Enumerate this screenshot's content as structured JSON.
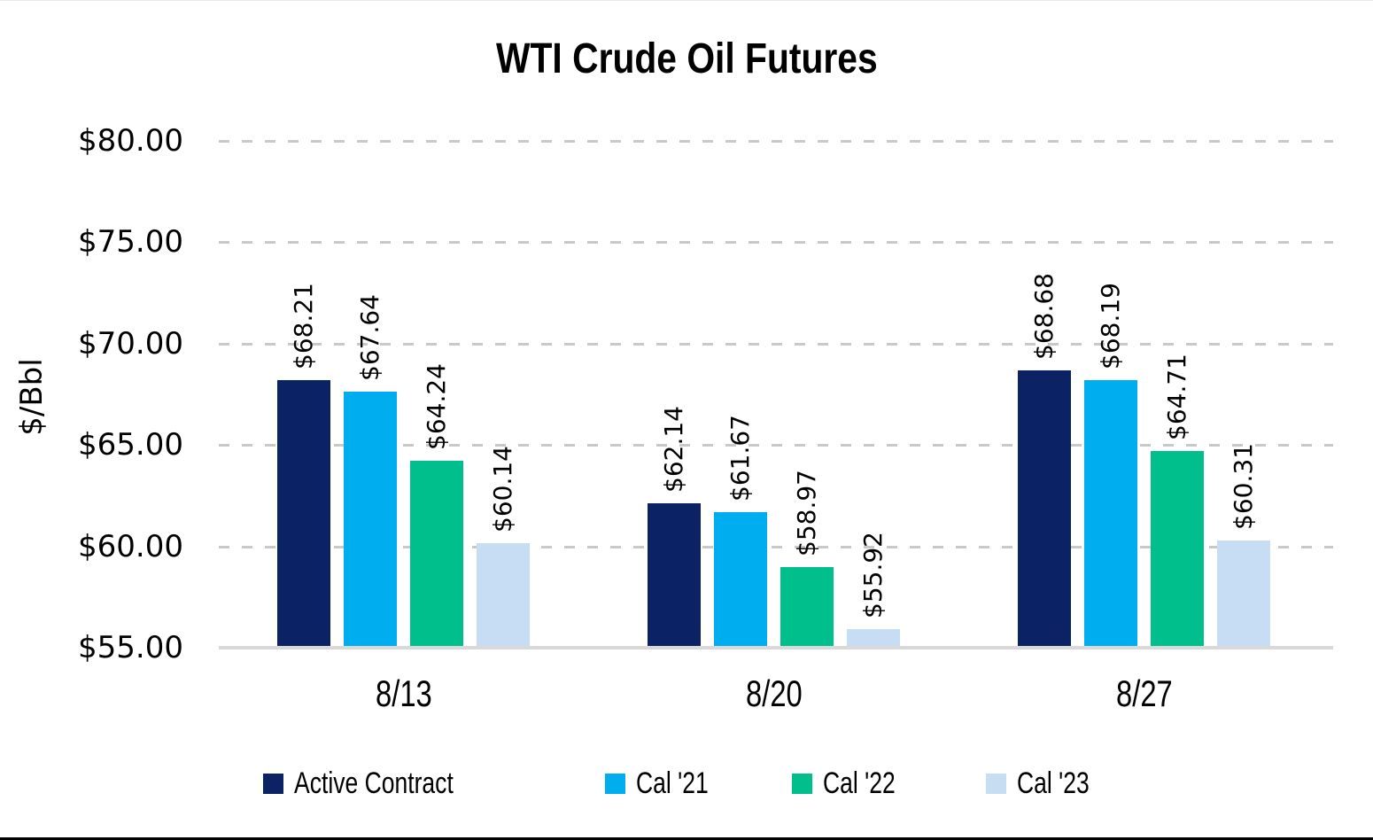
{
  "chart_data": {
    "type": "bar",
    "title": "WTI Crude Oil Futures",
    "ylabel": "$/Bbl",
    "xlabel": "",
    "categories": [
      "8/13",
      "8/20",
      "8/27"
    ],
    "series": [
      {
        "name": "Active Contract",
        "color": "#0b2265",
        "values": [
          68.21,
          62.14,
          68.68
        ],
        "labels": [
          "$68.21",
          "$62.14",
          "$68.68"
        ]
      },
      {
        "name": "Cal '21",
        "color": "#00aeef",
        "values": [
          67.64,
          61.67,
          68.19
        ],
        "labels": [
          "$67.64",
          "$61.67",
          "$68.19"
        ]
      },
      {
        "name": "Cal '22",
        "color": "#00bf8d",
        "values": [
          64.24,
          58.97,
          64.71
        ],
        "labels": [
          "$64.24",
          "$58.97",
          "$64.71"
        ]
      },
      {
        "name": "Cal '23",
        "color": "#c7ddf4",
        "values": [
          60.14,
          55.92,
          60.31
        ],
        "labels": [
          "$60.14",
          "$55.92",
          "$60.31"
        ]
      }
    ],
    "y_ticks": [
      {
        "value": 80,
        "label": "$80.00"
      },
      {
        "value": 75,
        "label": "$75.00"
      },
      {
        "value": 70,
        "label": "$70.00"
      },
      {
        "value": 65,
        "label": "$65.00"
      },
      {
        "value": 60,
        "label": "$60.00"
      },
      {
        "value": 55,
        "label": "$55.00"
      }
    ],
    "ylim": [
      55,
      80
    ],
    "grid": "horizontal-dashed",
    "gridline_color": "#c9c9c9",
    "baseline_color": "#d9d9d9",
    "legend_position": "bottom",
    "data_label_rotation": -90
  }
}
